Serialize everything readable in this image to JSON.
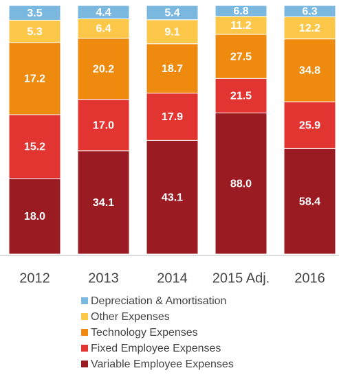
{
  "chart_data": {
    "type": "bar",
    "stacking": "percent",
    "categories": [
      "2012",
      "2013",
      "2014",
      "2015 Adj.",
      "2016"
    ],
    "series": [
      {
        "name": "Depreciation & Amortisation",
        "color": "#7ab8e0",
        "values": [
          3.5,
          4.4,
          5.4,
          6.8,
          6.3
        ]
      },
      {
        "name": "Other Expenses",
        "color": "#fdc84a",
        "values": [
          5.3,
          6.4,
          9.1,
          11.2,
          12.2
        ]
      },
      {
        "name": "Technology Expenses",
        "color": "#ee8a0e",
        "values": [
          17.2,
          20.2,
          18.7,
          27.5,
          34.8
        ]
      },
      {
        "name": "Fixed Employee Expenses",
        "color": "#e23431",
        "values": [
          15.2,
          17.0,
          17.9,
          21.5,
          25.9
        ],
        "value_labels": [
          "15.2",
          "17.0",
          "17.9",
          "21.5",
          "25.9"
        ]
      },
      {
        "name": "Variable Employee Expenses",
        "color": "#9b1b22",
        "values": [
          18.0,
          34.1,
          43.1,
          88.0,
          58.4
        ],
        "value_labels": [
          "18.0",
          "34.1",
          "43.1",
          "88.0",
          "58.4"
        ]
      }
    ]
  }
}
